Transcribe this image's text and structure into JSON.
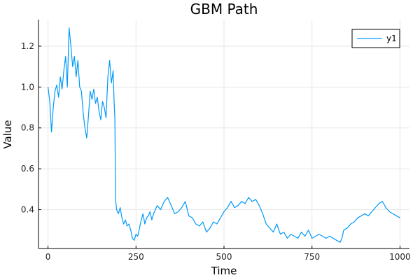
{
  "chart_data": {
    "type": "line",
    "title": "GBM Path",
    "xlabel": "Time",
    "ylabel": "Value",
    "xlim": [
      -27,
      1027
    ],
    "ylim": [
      0.21,
      1.33
    ],
    "xticks": [
      0,
      250,
      500,
      750,
      1000
    ],
    "xtick_labels": [
      "0",
      "250",
      "500",
      "750",
      "1000"
    ],
    "yticks": [
      0.4,
      0.6,
      0.8,
      1.0,
      1.2
    ],
    "ytick_labels": [
      "0.4",
      "0.6",
      "0.8",
      "1.0",
      "1.2"
    ],
    "grid": true,
    "legend_position": "top-right",
    "series": [
      {
        "name": "y1",
        "color": "#009af9",
        "x": [
          0,
          5,
          10,
          15,
          20,
          25,
          30,
          35,
          40,
          45,
          50,
          55,
          60,
          65,
          70,
          75,
          80,
          85,
          90,
          95,
          100,
          105,
          110,
          115,
          120,
          125,
          130,
          135,
          140,
          145,
          150,
          155,
          160,
          165,
          170,
          175,
          180,
          185,
          188,
          190,
          192,
          195,
          200,
          205,
          210,
          215,
          220,
          225,
          230,
          235,
          240,
          245,
          250,
          255,
          260,
          265,
          270,
          275,
          280,
          285,
          290,
          295,
          300,
          310,
          320,
          330,
          340,
          350,
          360,
          370,
          380,
          390,
          400,
          410,
          420,
          430,
          440,
          450,
          460,
          470,
          480,
          490,
          500,
          510,
          520,
          530,
          540,
          550,
          560,
          570,
          580,
          590,
          600,
          610,
          620,
          630,
          640,
          650,
          660,
          670,
          680,
          690,
          700,
          710,
          720,
          730,
          740,
          750,
          760,
          770,
          780,
          790,
          800,
          810,
          820,
          830,
          835,
          840,
          850,
          860,
          870,
          880,
          890,
          900,
          910,
          920,
          930,
          940,
          950,
          960,
          970,
          980,
          990,
          1000
        ],
        "values": [
          1.0,
          0.93,
          0.78,
          0.9,
          0.98,
          1.01,
          0.95,
          1.05,
          0.99,
          1.08,
          1.15,
          1.0,
          1.29,
          1.2,
          1.1,
          1.15,
          1.05,
          1.13,
          1.0,
          0.98,
          0.87,
          0.8,
          0.75,
          0.86,
          0.98,
          0.94,
          0.99,
          0.92,
          0.95,
          0.88,
          0.84,
          0.93,
          0.9,
          0.85,
          1.05,
          1.13,
          1.02,
          1.08,
          0.92,
          0.85,
          0.45,
          0.4,
          0.38,
          0.41,
          0.36,
          0.33,
          0.35,
          0.32,
          0.33,
          0.3,
          0.26,
          0.25,
          0.28,
          0.27,
          0.31,
          0.35,
          0.38,
          0.33,
          0.36,
          0.37,
          0.39,
          0.35,
          0.38,
          0.42,
          0.4,
          0.44,
          0.46,
          0.42,
          0.38,
          0.39,
          0.41,
          0.44,
          0.37,
          0.36,
          0.33,
          0.32,
          0.34,
          0.29,
          0.31,
          0.34,
          0.33,
          0.36,
          0.39,
          0.41,
          0.44,
          0.41,
          0.42,
          0.44,
          0.43,
          0.46,
          0.44,
          0.45,
          0.42,
          0.38,
          0.33,
          0.31,
          0.29,
          0.33,
          0.28,
          0.29,
          0.26,
          0.28,
          0.27,
          0.26,
          0.29,
          0.27,
          0.3,
          0.26,
          0.27,
          0.28,
          0.27,
          0.26,
          0.27,
          0.26,
          0.25,
          0.24,
          0.26,
          0.3,
          0.31,
          0.33,
          0.34,
          0.36,
          0.37,
          0.38,
          0.37,
          0.39,
          0.41,
          0.43,
          0.44,
          0.41,
          0.39,
          0.38,
          0.37,
          0.36
        ]
      }
    ]
  }
}
